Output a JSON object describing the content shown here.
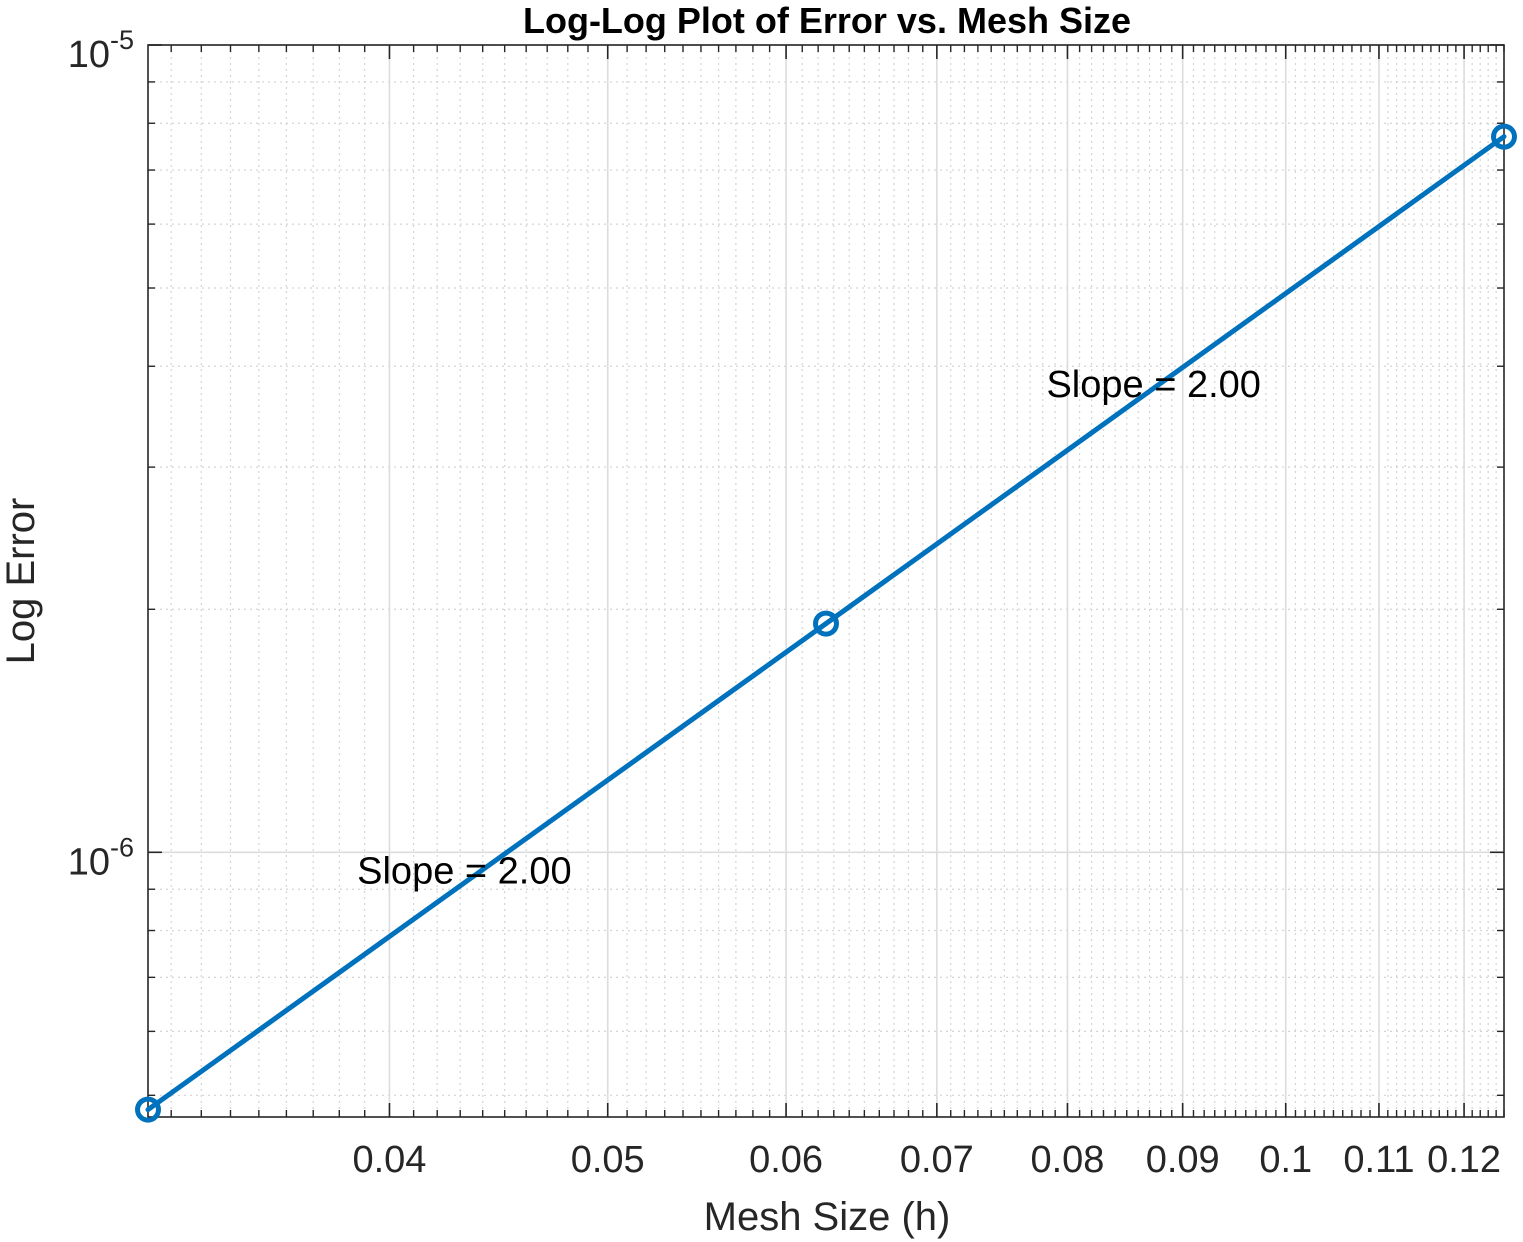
{
  "chart_data": {
    "type": "line",
    "title": "Log-Log Plot of Error vs. Mesh Size",
    "xlabel": "Mesh Size (h)",
    "ylabel": "Log Error",
    "xscale": "log",
    "yscale": "log",
    "xlim": [
      0.03125,
      0.125
    ],
    "ylim": [
      4.7e-07,
      1e-05
    ],
    "grid": true,
    "minor_grid": true,
    "legend": "none",
    "x_ticks": [
      {
        "value": 0.04,
        "label": "0.04"
      },
      {
        "value": 0.05,
        "label": "0.05"
      },
      {
        "value": 0.06,
        "label": "0.06"
      },
      {
        "value": 0.07,
        "label": "0.07"
      },
      {
        "value": 0.08,
        "label": "0.08"
      },
      {
        "value": 0.09,
        "label": "0.09"
      },
      {
        "value": 0.1,
        "label": "0.1"
      },
      {
        "value": 0.11,
        "label": "0.11"
      },
      {
        "value": 0.12,
        "label": "0.12"
      }
    ],
    "y_ticks": [
      {
        "value": 1e-06,
        "base": "10",
        "exponent": "-6"
      },
      {
        "value": 1e-05,
        "base": "10",
        "exponent": "-5"
      }
    ],
    "series": [
      {
        "color": "#0072BD",
        "marker": "circle",
        "x": [
          0.03125,
          0.0625,
          0.125
        ],
        "y": [
          4.8e-07,
          1.92e-06,
          7.7e-06
        ]
      }
    ],
    "annotations": [
      {
        "text": "Slope = 2.00",
        "x": 0.0387,
        "y": 9.5e-07
      },
      {
        "text": "Slope = 2.00",
        "x": 0.0783,
        "y": 3.8e-06
      }
    ]
  }
}
